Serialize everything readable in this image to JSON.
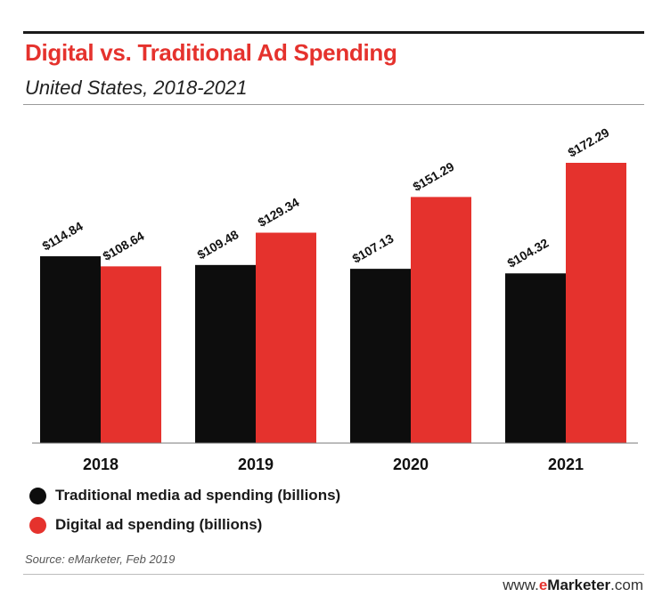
{
  "title": "Digital vs. Traditional Ad Spending",
  "subtitle": "United States, 2018-2021",
  "colors": {
    "traditional": "#0d0d0d",
    "digital": "#e5322d"
  },
  "chart_data": {
    "type": "bar",
    "categories": [
      "2018",
      "2019",
      "2020",
      "2021"
    ],
    "series": [
      {
        "name": "Traditional media ad spending (billions)",
        "values": [
          114.84,
          109.48,
          107.13,
          104.32
        ],
        "labels": [
          "$114.84",
          "$109.48",
          "$107.13",
          "$104.32"
        ]
      },
      {
        "name": "Digital ad spending (billions)",
        "values": [
          108.64,
          129.34,
          151.29,
          172.29
        ],
        "labels": [
          "$108.64",
          "$129.34",
          "$151.29",
          "$172.29"
        ]
      }
    ],
    "ylim": [
      0,
      172.29
    ],
    "grid": false,
    "legend": "bottom-left"
  },
  "source": "Source: eMarketer, Feb 2019",
  "brand": {
    "prefix": "www.",
    "e": "e",
    "name": "Marketer",
    "suffix": ".com"
  }
}
